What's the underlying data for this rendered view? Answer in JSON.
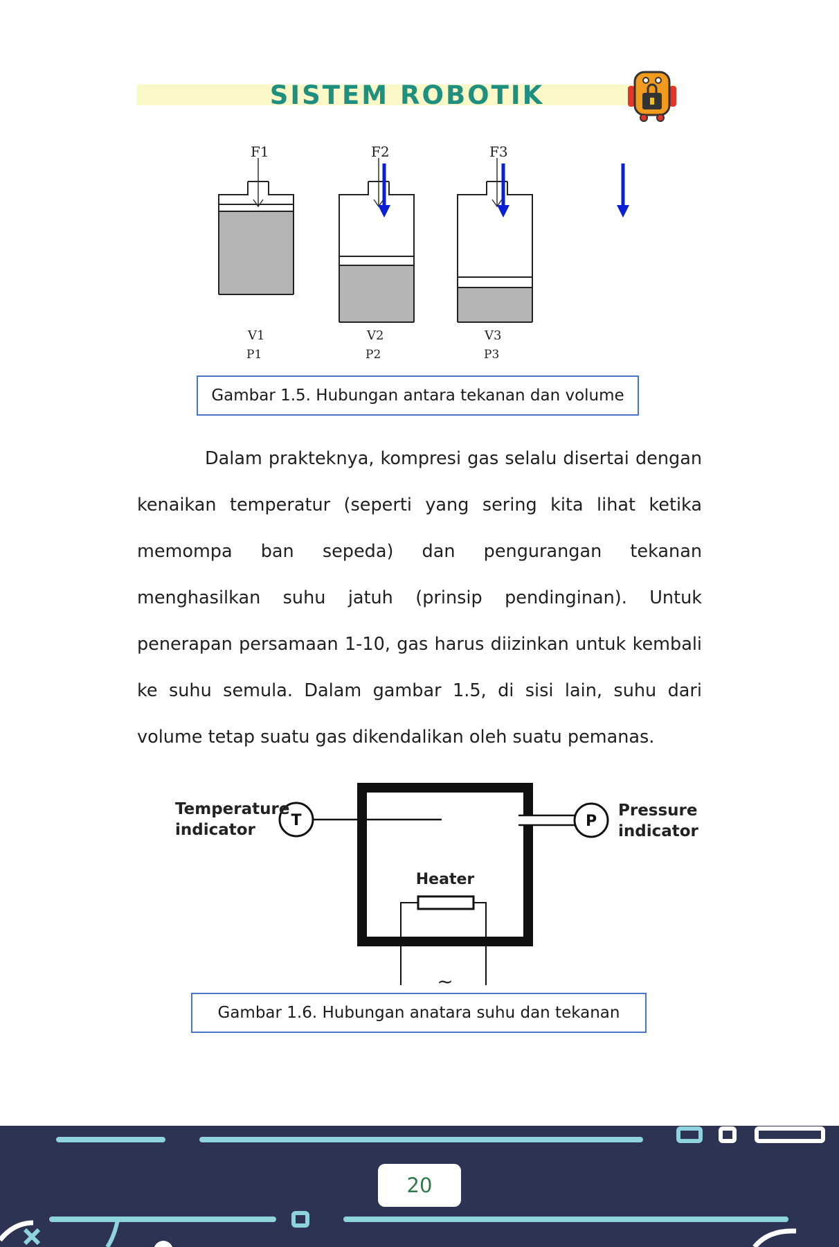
{
  "header": {
    "title": "SISTEM ROBOTIK",
    "logo_icon": "robot-icon"
  },
  "figure1": {
    "labels": {
      "f1": "F1",
      "f2": "F2",
      "f3": "F3",
      "v1": "V1",
      "v2": "V2",
      "v3": "V3",
      "p1": "P1",
      "p2": "P2",
      "p3": "P3"
    },
    "caption": "Gambar 1.5. Hubungan antara tekanan dan volume"
  },
  "paragraph": {
    "lines": [
      "Dalam prakteknya, kompresi gas selalu disertai dengan",
      "kenaikan temperatur (seperti yang sering kita lihat ketika",
      "memompa ban sepeda) dan pengurangan tekanan",
      "menghasilkan suhu jatuh (prinsip pendinginan). Untuk",
      "penerapan persamaan 1-10, gas harus diizinkan untuk kembali",
      "ke suhu semula. Dalam gambar 1.5, di sisi lain, suhu dari volume",
      "tetap suatu gas dikendalikan oleh suatu pemanas."
    ]
  },
  "figure2": {
    "temp_label_1": "Temperature",
    "temp_label_2": "indicator",
    "temp_symbol": "T",
    "pressure_label_1": "Pressure",
    "pressure_label_2": "indicator",
    "pressure_symbol": "P",
    "heater_label": "Heater",
    "ac_symbol": "~",
    "caption": "Gambar 1.6. Hubungan anatara suhu dan tekanan"
  },
  "footer": {
    "page_number": "20"
  },
  "colors": {
    "accent": "#1f8f80",
    "caption_border": "#4a74c9",
    "footer_bg": "#2d3352",
    "footer_lines": "#8fd3dc",
    "arrow_blue": "#0a1fd6"
  }
}
